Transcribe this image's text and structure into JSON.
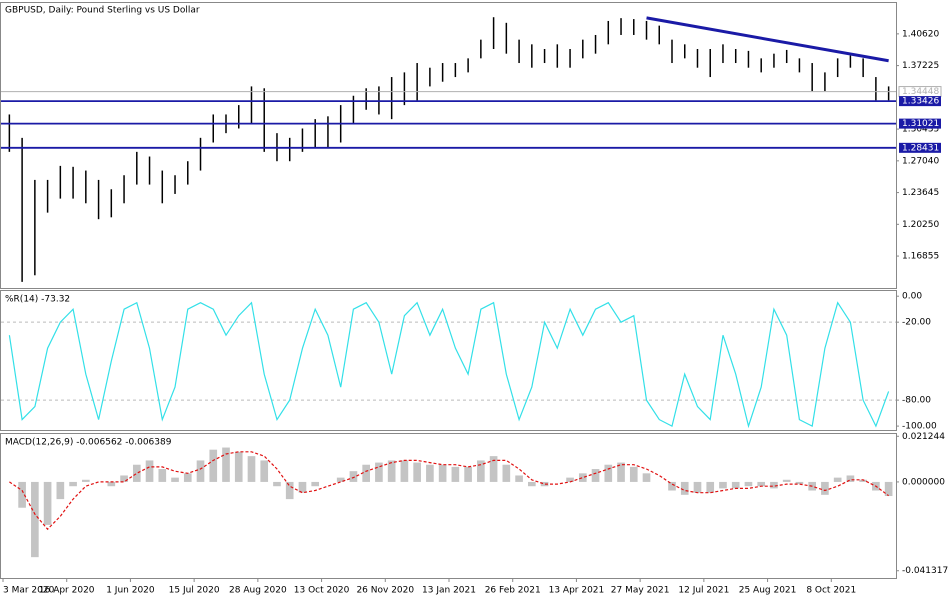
{
  "chart_data": [
    {
      "type": "ohlc",
      "title": "GBPUSD, Daily:  Pound Sterling vs US Dollar",
      "color": "#000000",
      "categories": [
        "3 Mar 2020",
        null,
        null,
        null,
        null,
        "16 Apr 2020",
        null,
        null,
        null,
        null,
        "1 Jun 2020",
        null,
        null,
        null,
        null,
        "15 Jul 2020",
        null,
        null,
        null,
        null,
        "28 Aug 2020",
        null,
        null,
        null,
        null,
        "13 Oct 2020",
        null,
        null,
        null,
        null,
        "26 Nov 2020",
        null,
        null,
        null,
        null,
        "13 Jan 2021",
        null,
        null,
        null,
        null,
        "26 Feb 2021",
        null,
        null,
        null,
        null,
        "13 Apr 2021",
        null,
        null,
        null,
        null,
        "27 May 2021",
        null,
        null,
        null,
        null,
        "12 Jul 2021",
        null,
        null,
        null,
        null,
        "25 Aug 2021",
        null,
        null,
        null,
        null,
        "8 Oct 2021",
        null,
        null,
        null,
        null
      ],
      "high": [
        1.32,
        1.295,
        1.25,
        1.25,
        1.265,
        1.264,
        1.26,
        1.25,
        1.24,
        1.255,
        1.28,
        1.275,
        1.26,
        1.255,
        1.27,
        1.295,
        1.32,
        1.32,
        1.33,
        1.35,
        1.348,
        1.3,
        1.295,
        1.305,
        1.315,
        1.318,
        1.33,
        1.34,
        1.348,
        1.35,
        1.36,
        1.365,
        1.375,
        1.37,
        1.375,
        1.375,
        1.38,
        1.4,
        1.424,
        1.418,
        1.4,
        1.395,
        1.39,
        1.395,
        1.39,
        1.4,
        1.405,
        1.42,
        1.423,
        1.422,
        1.42,
        1.415,
        1.4,
        1.395,
        1.39,
        1.39,
        1.395,
        1.39,
        1.388,
        1.38,
        1.385,
        1.389,
        1.38,
        1.375,
        1.365,
        1.38,
        1.383,
        1.38,
        1.36,
        1.35
      ],
      "low": [
        1.28,
        1.1409,
        1.148,
        1.215,
        1.23,
        1.23,
        1.225,
        1.208,
        1.21,
        1.225,
        1.245,
        1.245,
        1.225,
        1.235,
        1.245,
        1.26,
        1.29,
        1.3,
        1.305,
        1.31,
        1.28,
        1.27,
        1.27,
        1.28,
        1.285,
        1.285,
        1.29,
        1.31,
        1.325,
        1.32,
        1.315,
        1.33,
        1.335,
        1.35,
        1.355,
        1.36,
        1.365,
        1.38,
        1.39,
        1.385,
        1.375,
        1.37,
        1.375,
        1.37,
        1.37,
        1.38,
        1.385,
        1.395,
        1.405,
        1.405,
        1.4,
        1.395,
        1.375,
        1.38,
        1.37,
        1.36,
        1.375,
        1.375,
        1.37,
        1.365,
        1.37,
        1.375,
        1.365,
        1.345,
        1.345,
        1.36,
        1.37,
        1.36,
        1.335,
        1.335
      ],
      "ylim": [
        1.1344,
        1.4392
      ],
      "yticks": [
        {
          "value": 1.4062,
          "label": "1.40620"
        },
        {
          "value": 1.37225,
          "label": "1.37225"
        },
        {
          "value": 1.30435,
          "label": "1.30435"
        },
        {
          "value": 1.2704,
          "label": "1.27040"
        },
        {
          "value": 1.23645,
          "label": "1.23645"
        },
        {
          "value": 1.2025,
          "label": "1.20250"
        },
        {
          "value": 1.16855,
          "label": "1.16855"
        }
      ],
      "current_price": {
        "value": 1.34448,
        "label": "1.34448",
        "color": "#b0b0b0"
      },
      "levels": [
        {
          "value": 1.33426,
          "label": "1.33426"
        },
        {
          "value": 1.31021,
          "label": "1.31021"
        },
        {
          "value": 1.28431,
          "label": "1.28431"
        }
      ],
      "level_color": "#1a1aa6",
      "trendline": {
        "start": [
          50,
          1.4233
        ],
        "end": [
          69,
          1.3774
        ],
        "color": "#1a1aa6"
      }
    },
    {
      "type": "line",
      "title": "%R(14) -73.32",
      "color": "#33e0e8",
      "values": [
        -30,
        -95,
        -85,
        -40,
        -20,
        -10,
        -60,
        -95,
        -50,
        -10,
        -5,
        -40,
        -95,
        -70,
        -10,
        -5,
        -10,
        -30,
        -15,
        -5,
        -60,
        -95,
        -80,
        -40,
        -10,
        -30,
        -70,
        -10,
        -5,
        -20,
        -60,
        -15,
        -5,
        -30,
        -10,
        -40,
        -60,
        -10,
        -5,
        -60,
        -95,
        -70,
        -20,
        -40,
        -10,
        -30,
        -10,
        -5,
        -20,
        -15,
        -80,
        -95,
        -100,
        -60,
        -85,
        -95,
        -30,
        -60,
        -100,
        -70,
        -10,
        -30,
        -95,
        -100,
        -40,
        -5,
        -20,
        -80,
        -100,
        -73.32
      ],
      "ylim": [
        -103,
        4
      ],
      "yticks": [
        {
          "value": 0,
          "label": "0.00"
        },
        {
          "value": -20,
          "label": "-20.00"
        },
        {
          "value": -80,
          "label": "-80.00"
        },
        {
          "value": -100,
          "label": "-100.00"
        }
      ],
      "grid_levels": [
        -20,
        -80
      ]
    },
    {
      "type": "macd",
      "title": "MACD(12,26,9) -0.006562 -0.006389",
      "series": [
        {
          "name": "MACD",
          "color": "#c4c4c4",
          "values": [
            0.0,
            -0.012,
            -0.035,
            -0.02,
            -0.008,
            -0.002,
            0.001,
            0.0,
            -0.002,
            0.003,
            0.008,
            0.01,
            0.006,
            0.002,
            0.004,
            0.01,
            0.015,
            0.016,
            0.014,
            0.012,
            0.01,
            -0.002,
            -0.008,
            -0.005,
            -0.002,
            0.0,
            0.002,
            0.005,
            0.008,
            0.009,
            0.01,
            0.01,
            0.009,
            0.008,
            0.008,
            0.007,
            0.007,
            0.01,
            0.012,
            0.008,
            0.003,
            -0.002,
            -0.002,
            0.0,
            0.002,
            0.004,
            0.006,
            0.008,
            0.009,
            0.007,
            0.004,
            0.0,
            -0.004,
            -0.006,
            -0.005,
            -0.005,
            -0.003,
            -0.003,
            -0.002,
            -0.002,
            -0.003,
            0.001,
            -0.001,
            -0.004,
            -0.006,
            0.002,
            0.003,
            0.001,
            -0.004,
            -0.006562
          ]
        },
        {
          "name": "Signal",
          "color": "#e01010",
          "values": [
            0.0,
            -0.004,
            -0.015,
            -0.022,
            -0.016,
            -0.008,
            -0.002,
            0.0,
            0.0,
            0.0,
            0.004,
            0.007,
            0.007,
            0.005,
            0.004,
            0.006,
            0.01,
            0.013,
            0.014,
            0.014,
            0.012,
            0.006,
            -0.002,
            -0.005,
            -0.004,
            -0.002,
            0.0,
            0.002,
            0.005,
            0.007,
            0.009,
            0.01,
            0.01,
            0.009,
            0.008,
            0.008,
            0.007,
            0.008,
            0.01,
            0.01,
            0.006,
            0.001,
            -0.001,
            -0.001,
            0.0,
            0.002,
            0.004,
            0.006,
            0.008,
            0.008,
            0.006,
            0.003,
            -0.001,
            -0.004,
            -0.005,
            -0.005,
            -0.004,
            -0.003,
            -0.003,
            -0.002,
            -0.002,
            -0.001,
            -0.001,
            -0.002,
            -0.004,
            -0.002,
            0.001,
            0.001,
            -0.002,
            -0.006389
          ]
        }
      ],
      "ylim": [
        -0.0447,
        0.0223
      ],
      "yticks": [
        0.021244,
        {
          "value": 0,
          "label": "0.000000"
        },
        -0.041317
      ]
    }
  ]
}
